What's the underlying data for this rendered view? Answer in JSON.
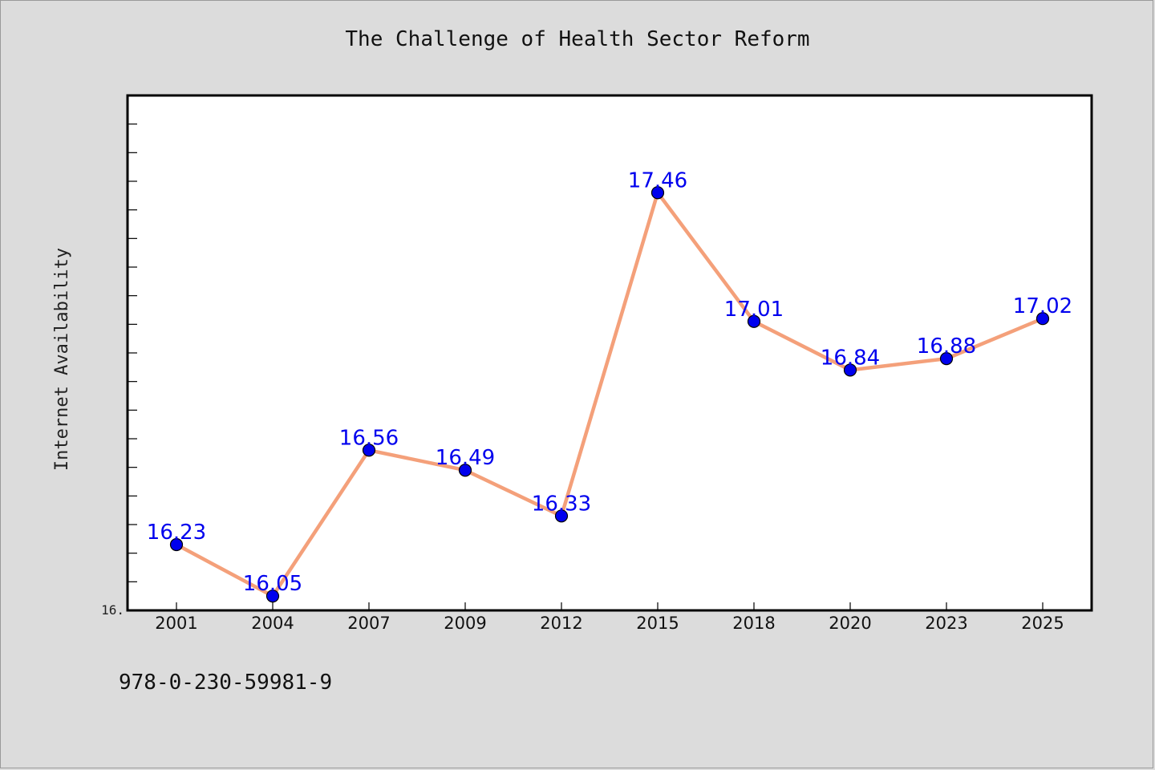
{
  "chart_data": {
    "type": "line",
    "title": "The Challenge of Health Sector Reform",
    "xlabel": "",
    "ylabel": "Internet Availability",
    "categories": [
      "2001",
      "2004",
      "2007",
      "2009",
      "2012",
      "2015",
      "2018",
      "2020",
      "2023",
      "2025"
    ],
    "series": [
      {
        "values": [
          16.23,
          16.05,
          16.56,
          16.49,
          16.33,
          17.46,
          17.01,
          16.84,
          16.88,
          17.02
        ]
      }
    ],
    "data_labels": [
      "16.23",
      "16.05",
      "16.56",
      "16.49",
      "16.33",
      "17.46",
      "17.01",
      "16.84",
      "16.88",
      "17.02"
    ],
    "y_tick_labels": [
      "16."
    ],
    "ylim": [
      16.0,
      17.8
    ],
    "grid": false,
    "legend": "none",
    "colors": {
      "line": "#f4a07a",
      "marker": "#0000ee",
      "data_label": "#0000ee",
      "plot_background": "#ffffff",
      "page_background": "#dcdcdc"
    }
  },
  "caption": "978-0-230-59981-9"
}
